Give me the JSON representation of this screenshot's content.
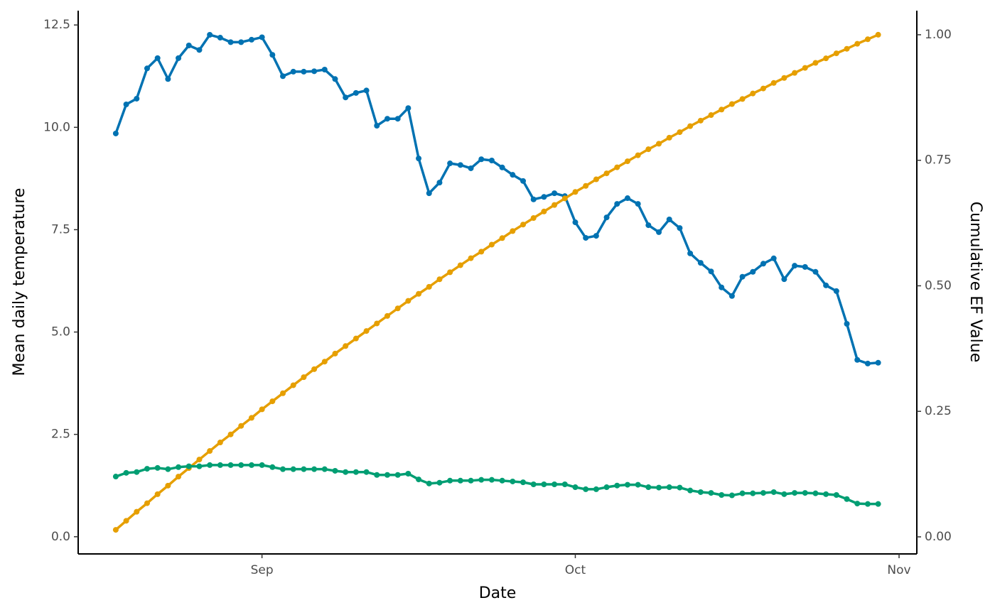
{
  "chart_data": {
    "type": "line",
    "xlabel": "Date",
    "ylabel": "Mean daily temperature",
    "y2label": "Cumulative EF Value",
    "x": [
      0,
      1,
      2,
      3,
      4,
      5,
      6,
      7,
      8,
      9,
      10,
      11,
      12,
      13,
      14,
      15,
      16,
      17,
      18,
      19,
      20,
      21,
      22,
      23,
      24,
      25,
      26,
      27,
      28,
      29,
      30,
      31,
      32,
      33,
      34,
      35,
      36,
      37,
      38,
      39,
      40,
      41,
      42,
      43,
      44,
      45,
      46,
      47,
      48,
      49,
      50,
      51,
      52,
      53,
      54,
      55,
      56,
      57,
      58,
      59,
      60,
      61,
      62,
      63,
      64,
      65,
      66,
      67,
      68,
      69,
      70,
      71,
      72,
      73
    ],
    "xlim": [
      -3.6,
      76.7
    ],
    "xticks": [
      {
        "value": 14,
        "label": "Sep"
      },
      {
        "value": 44,
        "label": "Oct"
      },
      {
        "value": 75,
        "label": "Nov"
      }
    ],
    "ylim": [
      -0.42,
      12.85
    ],
    "yticks": [
      {
        "value": 0,
        "label": "0.0"
      },
      2.5,
      {
        "value": 5,
        "label": "5.0"
      },
      7.5,
      {
        "value": 10,
        "label": "10.0"
      },
      12.5
    ],
    "y2lim": [
      -0.034,
      1.048
    ],
    "y2ticks": [
      {
        "value": 0,
        "label": "0.00"
      },
      0.25,
      {
        "value": 0.5,
        "label": "0.50"
      },
      0.75,
      {
        "value": 1,
        "label": "1.00"
      }
    ],
    "grid": false,
    "series": [
      {
        "color": "#0072b2",
        "values": [
          9.85,
          10.56,
          10.7,
          11.44,
          11.69,
          11.18,
          11.69,
          12.0,
          11.89,
          12.26,
          12.19,
          12.08,
          12.08,
          12.14,
          12.2,
          11.77,
          11.25,
          11.36,
          11.36,
          11.37,
          11.41,
          11.18,
          10.73,
          10.84,
          10.9,
          10.04,
          10.21,
          10.21,
          10.47,
          9.24,
          8.39,
          8.65,
          9.12,
          9.08,
          9.0,
          9.22,
          9.19,
          9.02,
          8.84,
          8.69,
          8.24,
          8.3,
          8.39,
          8.32,
          7.68,
          7.3,
          7.35,
          7.8,
          8.13,
          8.27,
          8.13,
          7.61,
          7.44,
          7.75,
          7.54,
          6.92,
          6.69,
          6.48,
          6.09,
          5.88,
          6.35,
          6.47,
          6.67,
          6.8,
          6.29,
          6.62,
          6.59,
          6.47,
          6.14,
          6.0,
          5.2,
          4.32,
          4.23,
          4.25
        ]
      },
      {
        "color": "#e69f00",
        "axis": "y2",
        "values": [
          0.014,
          0.032,
          0.05,
          0.067,
          0.085,
          0.102,
          0.12,
          0.137,
          0.154,
          0.171,
          0.188,
          0.204,
          0.221,
          0.237,
          0.254,
          0.27,
          0.286,
          0.302,
          0.318,
          0.334,
          0.349,
          0.365,
          0.38,
          0.395,
          0.41,
          0.425,
          0.44,
          0.455,
          0.47,
          0.484,
          0.498,
          0.513,
          0.527,
          0.541,
          0.555,
          0.568,
          0.582,
          0.595,
          0.609,
          0.622,
          0.635,
          0.648,
          0.661,
          0.674,
          0.687,
          0.699,
          0.712,
          0.724,
          0.736,
          0.748,
          0.76,
          0.772,
          0.783,
          0.795,
          0.806,
          0.818,
          0.829,
          0.84,
          0.851,
          0.862,
          0.872,
          0.883,
          0.893,
          0.904,
          0.914,
          0.924,
          0.934,
          0.944,
          0.953,
          0.963,
          0.972,
          0.982,
          0.991,
          1.0
        ]
      },
      {
        "color": "#009e73",
        "values": [
          1.47,
          1.56,
          1.58,
          1.66,
          1.68,
          1.65,
          1.7,
          1.72,
          1.72,
          1.75,
          1.75,
          1.75,
          1.75,
          1.75,
          1.75,
          1.7,
          1.65,
          1.65,
          1.65,
          1.65,
          1.65,
          1.61,
          1.58,
          1.58,
          1.58,
          1.51,
          1.51,
          1.51,
          1.54,
          1.4,
          1.3,
          1.32,
          1.37,
          1.37,
          1.37,
          1.39,
          1.39,
          1.37,
          1.35,
          1.33,
          1.28,
          1.28,
          1.28,
          1.28,
          1.21,
          1.16,
          1.16,
          1.21,
          1.25,
          1.27,
          1.27,
          1.21,
          1.2,
          1.21,
          1.2,
          1.13,
          1.09,
          1.07,
          1.02,
          1.01,
          1.06,
          1.06,
          1.07,
          1.09,
          1.04,
          1.07,
          1.07,
          1.06,
          1.04,
          1.02,
          0.92,
          0.81,
          0.8,
          0.8
        ]
      }
    ]
  }
}
